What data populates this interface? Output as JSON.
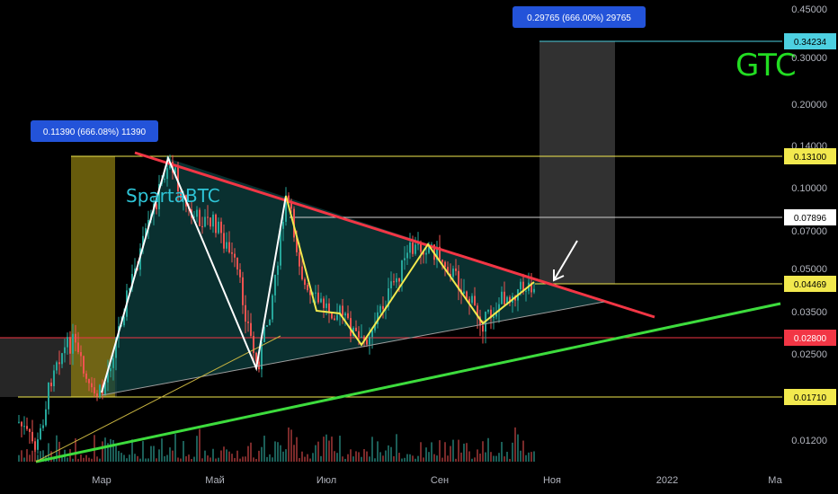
{
  "chart_data": {
    "type": "candlestick",
    "symbol_label": "SpartaBTC",
    "annotation_gtc": "GTC",
    "y_scale": "log",
    "y_ticks": [
      "0.45000",
      "0.30000",
      "0.20000",
      "0.14000",
      "0.10000",
      "0.07000",
      "0.05000",
      "0.03500",
      "0.02500",
      "0.01200"
    ],
    "x_ticks": [
      "Мар",
      "Май",
      "Июл",
      "Сен",
      "Ноя",
      "2022",
      "Ма"
    ],
    "price_levels": [
      {
        "label": "0.34234",
        "color": "#4dd0e1",
        "style": "cyan"
      },
      {
        "label": "0.13100",
        "color": "#f2e94e",
        "style": "yellow"
      },
      {
        "label": "0.07896",
        "color": "#ffffff",
        "style": "white"
      },
      {
        "label": "0.04469",
        "color": "#f2e94e",
        "style": "yellow"
      },
      {
        "label": "0.02800",
        "color": "#f23645",
        "style": "red"
      },
      {
        "label": "0.01710",
        "color": "#f2e94e",
        "style": "yellow"
      }
    ],
    "measure_boxes": [
      {
        "text": "0.11390 (666.08%) 11390",
        "color": "#d4b106"
      },
      {
        "text": "0.29765 (666.00%) 29765",
        "color": "#9e9e9e"
      }
    ],
    "series": [
      {
        "name": "candles",
        "description_type": "ohlc"
      }
    ],
    "trendlines": [
      "resistance-red",
      "support-green",
      "triangle-lower-gray",
      "support-yellow"
    ],
    "colors": {
      "up": "#26a69a",
      "down": "#ef5350",
      "background": "#000000",
      "triangle_fill": "#0e3b3b"
    }
  }
}
